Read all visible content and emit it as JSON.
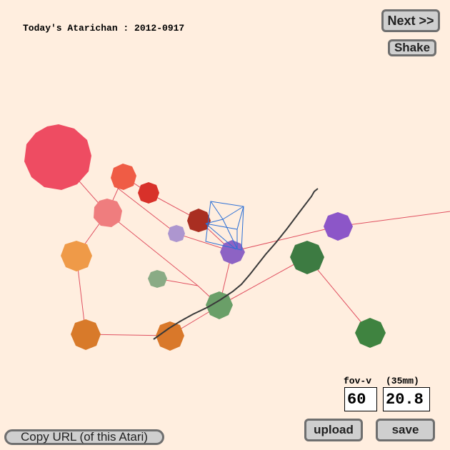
{
  "header": {
    "title": "Today's Atarichan : 2012-0917"
  },
  "buttons": {
    "next": "Next >>",
    "shake": "Shake",
    "upload": "upload",
    "save": "save",
    "copy_url": "Copy URL (of this Atari)"
  },
  "camera": {
    "fov_label": "fov-v",
    "mm_label": "(35mm)",
    "fov_value": "60",
    "mm_value": "20.8"
  },
  "colors": {
    "background": "#ffeedf",
    "link_line": "#e05060",
    "stroke_line": "#3a3a3a",
    "cube_wire": "#2b6fd6"
  }
}
